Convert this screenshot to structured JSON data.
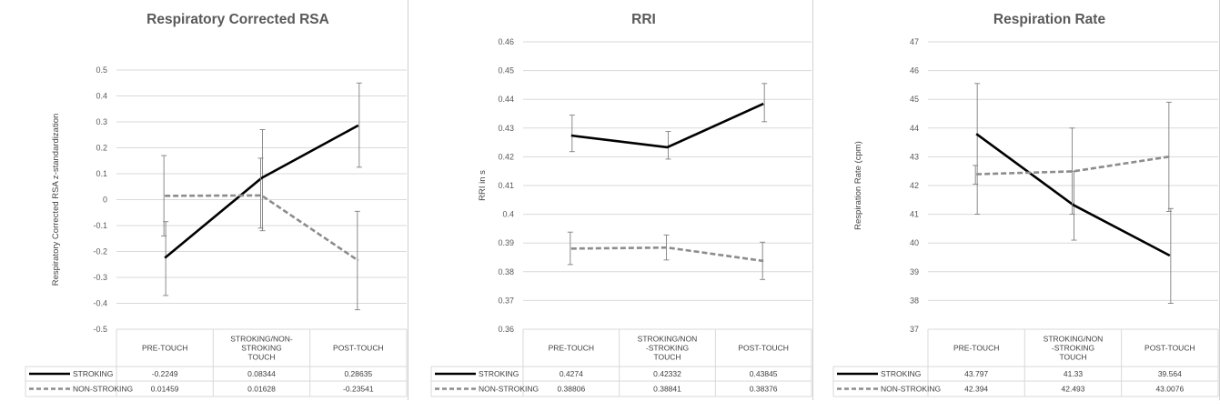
{
  "figure": {
    "row_labels": [
      "STROKING",
      "NON-STROKING"
    ],
    "colors": {
      "stroking": "#000000",
      "non_stroking": "#8c8c8c",
      "error_bar": "#7f7f7f",
      "grid": "#d9d9d9"
    }
  },
  "chart_data": [
    {
      "type": "line",
      "title": "Respiratory Corrected RSA",
      "ylabel": "Respiratory Corrected RSA z-standardization",
      "xlabel": "",
      "ylim": [
        -0.5,
        0.5
      ],
      "yticks": [
        -0.5,
        -0.4,
        -0.3,
        -0.2,
        -0.1,
        0,
        0.1,
        0.2,
        0.3,
        0.4,
        0.5
      ],
      "ytick_labels": [
        "-0.5",
        "-0.4",
        "-0.3",
        "-0.2",
        "-0.1",
        "0",
        "0.1",
        "0.2",
        "0.3",
        "0.4",
        "0.5"
      ],
      "categories": [
        [
          "PRE-TOUCH"
        ],
        [
          "STROKING/NON-",
          "STROKING",
          "TOUCH"
        ],
        [
          "POST-TOUCH"
        ]
      ],
      "grid": true,
      "legend": "data table below plot",
      "series": [
        {
          "name": "STROKING",
          "style": "solid",
          "values": [
            -0.2249,
            0.08344,
            0.28635
          ],
          "value_labels": [
            "-0.2249",
            "0.08344",
            "0.28635"
          ],
          "error_low": [
            -0.37,
            -0.12,
            0.125
          ],
          "error_high": [
            -0.085,
            0.27,
            0.45
          ]
        },
        {
          "name": "NON-STROKING",
          "style": "dashed",
          "values": [
            0.01459,
            0.01628,
            -0.23541
          ],
          "value_labels": [
            "0.01459",
            "0.01628",
            "-0.23541"
          ],
          "error_low": [
            -0.14,
            -0.11,
            -0.425
          ],
          "error_high": [
            0.17,
            0.16,
            -0.045
          ]
        }
      ]
    },
    {
      "type": "line",
      "title": "RRI",
      "ylabel": "RRI in s",
      "xlabel": "",
      "ylim": [
        0.36,
        0.46
      ],
      "yticks": [
        0.36,
        0.37,
        0.38,
        0.39,
        0.4,
        0.41,
        0.42,
        0.43,
        0.44,
        0.45,
        0.46
      ],
      "ytick_labels": [
        "0.36",
        "0.37",
        "0.38",
        "0.39",
        "0.4",
        "0.41",
        "0.42",
        "0.43",
        "0.44",
        "0.45",
        "0.46"
      ],
      "categories": [
        [
          "PRE-TOUCH"
        ],
        [
          "STROKING/NON",
          "-STROKING",
          "TOUCH"
        ],
        [
          "POST-TOUCH"
        ]
      ],
      "grid": true,
      "legend": "data table below plot",
      "series": [
        {
          "name": "STROKING",
          "style": "solid",
          "values": [
            0.4274,
            0.42332,
            0.43845
          ],
          "value_labels": [
            "0.4274",
            "0.42332",
            "0.43845"
          ],
          "error_low": [
            0.4218,
            0.4192,
            0.4322
          ],
          "error_high": [
            0.4345,
            0.4288,
            0.4455
          ]
        },
        {
          "name": "NON-STROKING",
          "style": "dashed",
          "values": [
            0.38806,
            0.38841,
            0.38376
          ],
          "value_labels": [
            "0.38806",
            "0.38841",
            "0.38376"
          ],
          "error_low": [
            0.3825,
            0.3841,
            0.3773
          ],
          "error_high": [
            0.3938,
            0.3928,
            0.3903
          ]
        }
      ]
    },
    {
      "type": "line",
      "title": "Respiration Rate",
      "ylabel": "Respiration Rate (cpm)",
      "xlabel": "",
      "ylim": [
        37,
        47
      ],
      "yticks": [
        37,
        38,
        39,
        40,
        41,
        42,
        43,
        44,
        45,
        46,
        47
      ],
      "ytick_labels": [
        "37",
        "38",
        "39",
        "40",
        "41",
        "42",
        "43",
        "44",
        "45",
        "46",
        "47"
      ],
      "categories": [
        [
          "PRE-TOUCH"
        ],
        [
          "STROKING/NON",
          "-STROKING",
          "TOUCH"
        ],
        [
          "POST-TOUCH"
        ]
      ],
      "grid": true,
      "legend": "data table below plot",
      "series": [
        {
          "name": "STROKING",
          "style": "solid",
          "values": [
            43.797,
            41.33,
            39.564
          ],
          "value_labels": [
            "43.797",
            "41.33",
            "39.564"
          ],
          "error_low": [
            41.0,
            40.1,
            37.9
          ],
          "error_high": [
            45.55,
            42.5,
            41.2
          ]
        },
        {
          "name": "NON-STROKING",
          "style": "dashed",
          "values": [
            42.394,
            42.493,
            43.0076
          ],
          "value_labels": [
            "42.394",
            "42.493",
            "43.0076"
          ],
          "error_low": [
            42.05,
            41.0,
            41.1
          ],
          "error_high": [
            42.7,
            44.0,
            44.9
          ]
        }
      ]
    }
  ]
}
